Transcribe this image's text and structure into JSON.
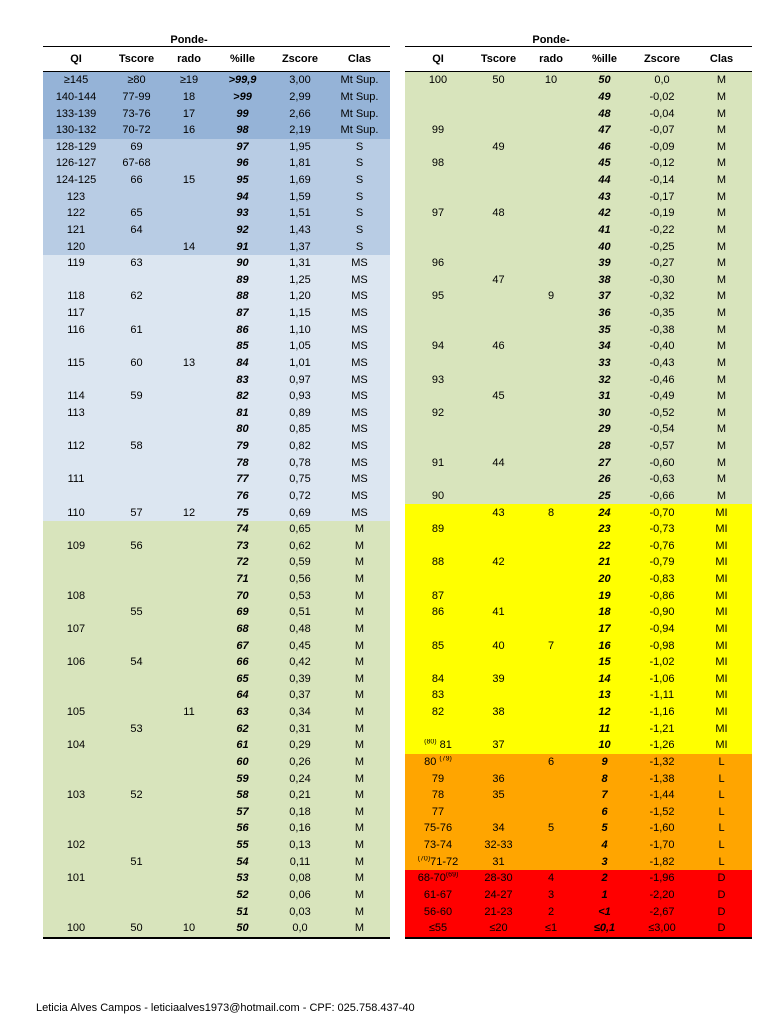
{
  "header": {
    "ponde_line1": "Ponde-",
    "columns": [
      "QI",
      "Tscore",
      "rado",
      "%ille",
      "Zscore",
      "Clas"
    ]
  },
  "bands": {
    "mtsup": "#95B3D7",
    "s": "#B8CCE4",
    "ms": "#DCE6F1",
    "m": "#D8E4BC",
    "mi": "#FFFF00",
    "l": "#FFA500",
    "d": "#FF0000"
  },
  "tables": {
    "left": {
      "rows": [
        [
          "≥145",
          "≥80",
          "≥19",
          ">99,9",
          "3,00",
          "Mt Sup.",
          "mtsup"
        ],
        [
          "140-144",
          "77-99",
          "18",
          ">99",
          "2,99",
          "Mt Sup.",
          "mtsup"
        ],
        [
          "133-139",
          "73-76",
          "17",
          "99",
          "2,66",
          "Mt Sup.",
          "mtsup"
        ],
        [
          "130-132",
          "70-72",
          "16",
          "98",
          "2,19",
          "Mt Sup.",
          "mtsup"
        ],
        [
          "128-129",
          "69",
          "",
          "97",
          "1,95",
          "S",
          "s"
        ],
        [
          "126-127",
          "67-68",
          "",
          "96",
          "1,81",
          "S",
          "s"
        ],
        [
          "124-125",
          "66",
          "15",
          "95",
          "1,69",
          "S",
          "s"
        ],
        [
          "123",
          "",
          "",
          "94",
          "1,59",
          "S",
          "s"
        ],
        [
          "122",
          "65",
          "",
          "93",
          "1,51",
          "S",
          "s"
        ],
        [
          "121",
          "64",
          "",
          "92",
          "1,43",
          "S",
          "s"
        ],
        [
          "120",
          "",
          "14",
          "91",
          "1,37",
          "S",
          "s"
        ],
        [
          "119",
          "63",
          "",
          "90",
          "1,31",
          "MS",
          "ms"
        ],
        [
          "",
          "",
          "",
          "89",
          "1,25",
          "MS",
          "ms"
        ],
        [
          "118",
          "62",
          "",
          "88",
          "1,20",
          "MS",
          "ms"
        ],
        [
          "117",
          "",
          "",
          "87",
          "1,15",
          "MS",
          "ms"
        ],
        [
          "116",
          "61",
          "",
          "86",
          "1,10",
          "MS",
          "ms"
        ],
        [
          "",
          "",
          "",
          "85",
          "1,05",
          "MS",
          "ms"
        ],
        [
          "115",
          "60",
          "13",
          "84",
          "1,01",
          "MS",
          "ms"
        ],
        [
          "",
          "",
          "",
          "83",
          "0,97",
          "MS",
          "ms"
        ],
        [
          "114",
          "59",
          "",
          "82",
          "0,93",
          "MS",
          "ms"
        ],
        [
          "113",
          "",
          "",
          "81",
          "0,89",
          "MS",
          "ms"
        ],
        [
          "",
          "",
          "",
          "80",
          "0,85",
          "MS",
          "ms"
        ],
        [
          "112",
          "58",
          "",
          "79",
          "0,82",
          "MS",
          "ms"
        ],
        [
          "",
          "",
          "",
          "78",
          "0,78",
          "MS",
          "ms"
        ],
        [
          "111",
          "",
          "",
          "77",
          "0,75",
          "MS",
          "ms"
        ],
        [
          "",
          "",
          "",
          "76",
          "0,72",
          "MS",
          "ms"
        ],
        [
          "110",
          "57",
          "12",
          "75",
          "0,69",
          "MS",
          "ms"
        ],
        [
          "",
          "",
          "",
          "74",
          "0,65",
          "M",
          "m"
        ],
        [
          "109",
          "56",
          "",
          "73",
          "0,62",
          "M",
          "m"
        ],
        [
          "",
          "",
          "",
          "72",
          "0,59",
          "M",
          "m"
        ],
        [
          "",
          "",
          "",
          "71",
          "0,56",
          "M",
          "m"
        ],
        [
          "108",
          "",
          "",
          "70",
          "0,53",
          "M",
          "m"
        ],
        [
          "",
          "55",
          "",
          "69",
          "0,51",
          "M",
          "m"
        ],
        [
          "107",
          "",
          "",
          "68",
          "0,48",
          "M",
          "m"
        ],
        [
          "",
          "",
          "",
          "67",
          "0,45",
          "M",
          "m"
        ],
        [
          "106",
          "54",
          "",
          "66",
          "0,42",
          "M",
          "m"
        ],
        [
          "",
          "",
          "",
          "65",
          "0,39",
          "M",
          "m"
        ],
        [
          "",
          "",
          "",
          "64",
          "0,37",
          "M",
          "m"
        ],
        [
          "105",
          "",
          "11",
          "63",
          "0,34",
          "M",
          "m"
        ],
        [
          "",
          "53",
          "",
          "62",
          "0,31",
          "M",
          "m"
        ],
        [
          "104",
          "",
          "",
          "61",
          "0,29",
          "M",
          "m"
        ],
        [
          "",
          "",
          "",
          "60",
          "0,26",
          "M",
          "m"
        ],
        [
          "",
          "",
          "",
          "59",
          "0,24",
          "M",
          "m"
        ],
        [
          "103",
          "52",
          "",
          "58",
          "0,21",
          "M",
          "m"
        ],
        [
          "",
          "",
          "",
          "57",
          "0,18",
          "M",
          "m"
        ],
        [
          "",
          "",
          "",
          "56",
          "0,16",
          "M",
          "m"
        ],
        [
          "102",
          "",
          "",
          "55",
          "0,13",
          "M",
          "m"
        ],
        [
          "",
          "51",
          "",
          "54",
          "0,11",
          "M",
          "m"
        ],
        [
          "101",
          "",
          "",
          "53",
          "0,08",
          "M",
          "m"
        ],
        [
          "",
          "",
          "",
          "52",
          "0,06",
          "M",
          "m"
        ],
        [
          "",
          "",
          "",
          "51",
          "0,03",
          "M",
          "m"
        ],
        [
          "100",
          "50",
          "10",
          "50",
          "0,0",
          "M",
          "m"
        ]
      ]
    },
    "right": {
      "rows": [
        [
          "100",
          "50",
          "10",
          "50",
          "0,0",
          "M",
          "m"
        ],
        [
          "",
          "",
          "",
          "49",
          "-0,02",
          "M",
          "m"
        ],
        [
          "",
          "",
          "",
          "48",
          "-0,04",
          "M",
          "m"
        ],
        [
          "99",
          "",
          "",
          "47",
          "-0,07",
          "M",
          "m"
        ],
        [
          "",
          "49",
          "",
          "46",
          "-0,09",
          "M",
          "m"
        ],
        [
          "98",
          "",
          "",
          "45",
          "-0,12",
          "M",
          "m"
        ],
        [
          "",
          "",
          "",
          "44",
          "-0,14",
          "M",
          "m"
        ],
        [
          "",
          "",
          "",
          "43",
          "-0,17",
          "M",
          "m"
        ],
        [
          "97",
          "48",
          "",
          "42",
          "-0,19",
          "M",
          "m"
        ],
        [
          "",
          "",
          "",
          "41",
          "-0,22",
          "M",
          "m"
        ],
        [
          "",
          "",
          "",
          "40",
          "-0,25",
          "M",
          "m"
        ],
        [
          "96",
          "",
          "",
          "39",
          "-0,27",
          "M",
          "m"
        ],
        [
          "",
          "47",
          "",
          "38",
          "-0,30",
          "M",
          "m"
        ],
        [
          "95",
          "",
          "9",
          "37",
          "-0,32",
          "M",
          "m"
        ],
        [
          "",
          "",
          "",
          "36",
          "-0,35",
          "M",
          "m"
        ],
        [
          "",
          "",
          "",
          "35",
          "-0,38",
          "M",
          "m"
        ],
        [
          "94",
          "46",
          "",
          "34",
          "-0,40",
          "M",
          "m"
        ],
        [
          "",
          "",
          "",
          "33",
          "-0,43",
          "M",
          "m"
        ],
        [
          "93",
          "",
          "",
          "32",
          "-0,46",
          "M",
          "m"
        ],
        [
          "",
          "45",
          "",
          "31",
          "-0,49",
          "M",
          "m"
        ],
        [
          "92",
          "",
          "",
          "30",
          "-0,52",
          "M",
          "m"
        ],
        [
          "",
          "",
          "",
          "29",
          "-0,54",
          "M",
          "m"
        ],
        [
          "",
          "",
          "",
          "28",
          "-0,57",
          "M",
          "m"
        ],
        [
          "91",
          "44",
          "",
          "27",
          "-0,60",
          "M",
          "m"
        ],
        [
          "",
          "",
          "",
          "26",
          "-0,63",
          "M",
          "m"
        ],
        [
          "90",
          "",
          "",
          "25",
          "-0,66",
          "M",
          "m"
        ],
        [
          "",
          "43",
          "8",
          "24",
          "-0,70",
          "MI",
          "mi"
        ],
        [
          "89",
          "",
          "",
          "23",
          "-0,73",
          "MI",
          "mi"
        ],
        [
          "",
          "",
          "",
          "22",
          "-0,76",
          "MI",
          "mi"
        ],
        [
          "88",
          "42",
          "",
          "21",
          "-0,79",
          "MI",
          "mi"
        ],
        [
          "",
          "",
          "",
          "20",
          "-0,83",
          "MI",
          "mi"
        ],
        [
          "87",
          "",
          "",
          "19",
          "-0,86",
          "MI",
          "mi"
        ],
        [
          "86",
          "41",
          "",
          "18",
          "-0,90",
          "MI",
          "mi"
        ],
        [
          "",
          "",
          "",
          "17",
          "-0,94",
          "MI",
          "mi"
        ],
        [
          "85",
          "40",
          "7",
          "16",
          "-0,98",
          "MI",
          "mi"
        ],
        [
          "",
          "",
          "",
          "15",
          "-1,02",
          "MI",
          "mi"
        ],
        [
          "84",
          "39",
          "",
          "14",
          "-1,06",
          "MI",
          "mi"
        ],
        [
          "83",
          "",
          "",
          "13",
          "-1,11",
          "MI",
          "mi"
        ],
        [
          "82",
          "38",
          "",
          "12",
          "-1,16",
          "MI",
          "mi"
        ],
        [
          "",
          "",
          "",
          "11",
          "-1,21",
          "MI",
          "mi"
        ],
        [
          "(80) 81",
          "37",
          "",
          "10",
          "-1,26",
          "MI",
          "mi"
        ],
        [
          "80 (79)",
          "",
          "6",
          "9",
          "-1,32",
          "L",
          "l"
        ],
        [
          "79",
          "36",
          "",
          "8",
          "-1,38",
          "L",
          "l"
        ],
        [
          "78",
          "35",
          "",
          "7",
          "-1,44",
          "L",
          "l"
        ],
        [
          "77",
          "",
          "",
          "6",
          "-1,52",
          "L",
          "l"
        ],
        [
          "75-76",
          "34",
          "5",
          "5",
          "-1,60",
          "L",
          "l"
        ],
        [
          "73-74",
          "32-33",
          "",
          "4",
          "-1,70",
          "L",
          "l"
        ],
        [
          "(70)71-72",
          "31",
          "",
          "3",
          "-1,82",
          "L",
          "l"
        ],
        [
          "68-70(69)",
          "28-30",
          "4",
          "2",
          "-1,96",
          "D",
          "d"
        ],
        [
          "61-67",
          "24-27",
          "3",
          "1",
          "-2,20",
          "D",
          "d"
        ],
        [
          "56-60",
          "21-23",
          "2",
          "<1",
          "-2,67",
          "D",
          "d"
        ],
        [
          "≤55",
          "≤20",
          "≤1",
          "≤0,1",
          "≤3,00",
          "D",
          "d"
        ]
      ]
    }
  },
  "footer": {
    "text": "Leticia Alves Campos - leticiaalves1973@hotmail.com - CPF: 025.758.437-40"
  }
}
